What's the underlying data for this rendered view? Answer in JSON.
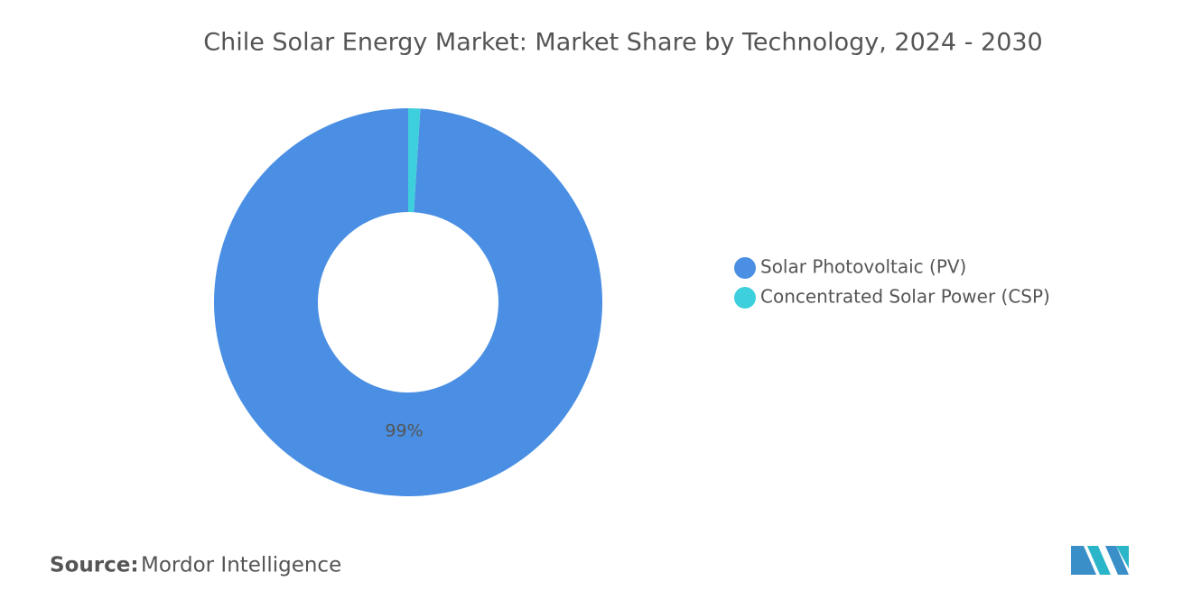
{
  "chart_data": {
    "type": "donut",
    "title": "Chile Solar Energy Market: Market Share by Technology, 2024 - 2030",
    "categories": [
      "Solar Photovoltaic (PV)",
      "Concentrated Solar Power (CSP)"
    ],
    "values": [
      99,
      1
    ],
    "value_labels": [
      "99%",
      null
    ],
    "colors": [
      "#4a8fe3",
      "#3ecfdc"
    ],
    "legend": "right"
  },
  "footer": {
    "source_label": "Source:",
    "source": "Mordor Intelligence"
  }
}
